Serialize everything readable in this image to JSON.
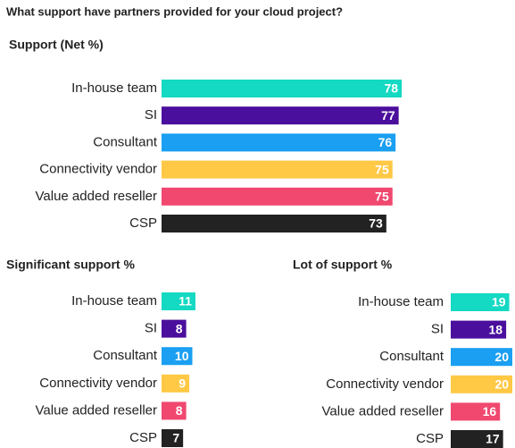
{
  "title": "What support have partners provided for your cloud project?",
  "chart_data": [
    {
      "type": "bar",
      "orientation": "horizontal",
      "title": "Support (Net %)",
      "categories": [
        "In-house team",
        "SI",
        "Consultant",
        "Connectivity vendor",
        "Value added reseller",
        "CSP"
      ],
      "values": [
        78,
        77,
        76,
        75,
        75,
        73
      ],
      "colors": [
        "#14d9c3",
        "#4a0f9c",
        "#1a9ff2",
        "#ffc845",
        "#f0486f",
        "#222222"
      ],
      "xlim": [
        0,
        80
      ]
    },
    {
      "type": "bar",
      "orientation": "horizontal",
      "title": "Significant support %",
      "categories": [
        "In-house team",
        "SI",
        "Consultant",
        "Connectivity vendor",
        "Value added reseller",
        "CSP"
      ],
      "values": [
        11,
        8,
        10,
        9,
        8,
        7
      ],
      "colors": [
        "#14d9c3",
        "#4a0f9c",
        "#1a9ff2",
        "#ffc845",
        "#f0486f",
        "#222222"
      ],
      "xlim": [
        0,
        80
      ]
    },
    {
      "type": "bar",
      "orientation": "horizontal",
      "title": "Lot of support %",
      "categories": [
        "In-house team",
        "SI",
        "Consultant",
        "Connectivity vendor",
        "Value added reseller",
        "CSP"
      ],
      "values": [
        19,
        18,
        20,
        20,
        16,
        17
      ],
      "colors": [
        "#14d9c3",
        "#4a0f9c",
        "#1a9ff2",
        "#ffc845",
        "#f0486f",
        "#222222"
      ],
      "xlim": [
        0,
        80
      ]
    }
  ]
}
